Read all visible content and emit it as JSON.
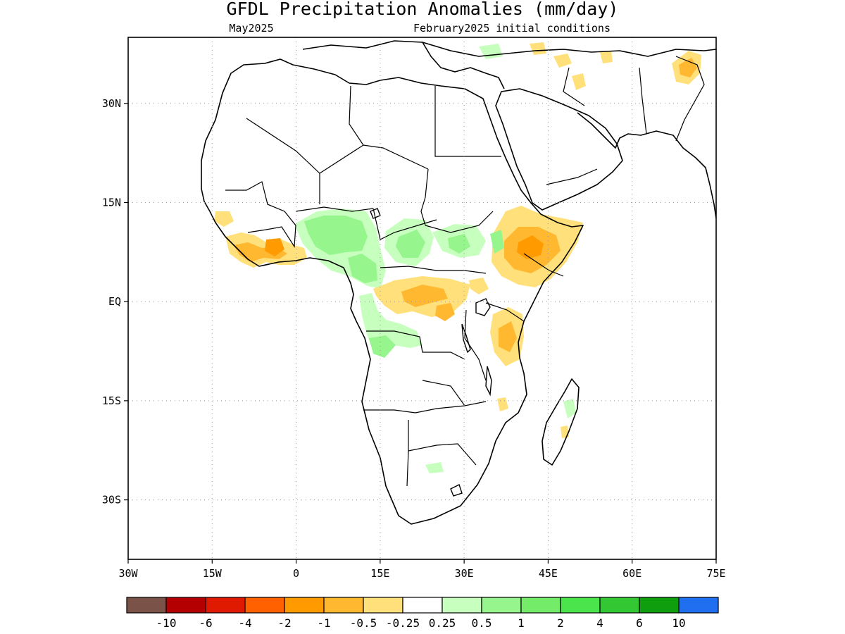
{
  "map": {
    "title": "GFDL Precipitation Anomalies (mm/day)",
    "valid_month": "May2025",
    "init_label": "February2025 initial conditions",
    "extent": {
      "lon": [
        -30,
        75
      ],
      "lat": [
        -39,
        40
      ]
    },
    "lon_ticks": [
      {
        "value": -30,
        "label": "30W"
      },
      {
        "value": -15,
        "label": "15W"
      },
      {
        "value": 0,
        "label": "0"
      },
      {
        "value": 15,
        "label": "15E"
      },
      {
        "value": 30,
        "label": "30E"
      },
      {
        "value": 45,
        "label": "45E"
      },
      {
        "value": 60,
        "label": "60E"
      },
      {
        "value": 75,
        "label": "75E"
      }
    ],
    "lat_ticks": [
      {
        "value": 30,
        "label": "30N"
      },
      {
        "value": 15,
        "label": "15N"
      },
      {
        "value": 0,
        "label": "EQ"
      },
      {
        "value": -15,
        "label": "15S"
      },
      {
        "value": -30,
        "label": "30S"
      }
    ],
    "grid": true
  },
  "colorbar": {
    "colors": [
      "#7a5248",
      "#b40000",
      "#e01a00",
      "#ff6000",
      "#ff9a00",
      "#ffb830",
      "#ffe07a",
      "#ffffff",
      "#c6ffbe",
      "#96f58c",
      "#74ec6a",
      "#4ce44c",
      "#33c833",
      "#0e9e0e",
      "#1f6ff0"
    ],
    "labels": [
      "-10",
      "-6",
      "-4",
      "-2",
      "-1",
      "-0.5",
      "-0.25",
      "0.25",
      "0.5",
      "1",
      "2",
      "4",
      "6",
      "10"
    ]
  },
  "chart_data": {
    "type": "heatmap",
    "title": "GFDL Precipitation Anomalies (mm/day)",
    "units": "mm/day",
    "color_levels": [
      -10,
      -6,
      -4,
      -2,
      -1,
      -0.5,
      -0.25,
      0.25,
      0.5,
      1,
      2,
      4,
      6,
      10
    ],
    "regions": [
      {
        "lon": [
          -13,
          -4
        ],
        "lat": [
          4,
          10
        ],
        "value": -0.6
      },
      {
        "lon": [
          -5,
          0
        ],
        "lat": [
          6,
          9
        ],
        "value": -1.2
      },
      {
        "lon": [
          1,
          15
        ],
        "lat": [
          6,
          14
        ],
        "value": 0.6
      },
      {
        "lon": [
          9,
          14
        ],
        "lat": [
          4,
          8
        ],
        "value": 1.0
      },
      {
        "lon": [
          19,
          27
        ],
        "lat": [
          7,
          12
        ],
        "value": 0.7
      },
      {
        "lon": [
          25,
          33
        ],
        "lat": [
          9,
          12
        ],
        "value": 0.5
      },
      {
        "lon": [
          14,
          29
        ],
        "lat": [
          -3,
          3
        ],
        "value": -0.6
      },
      {
        "lon": [
          16,
          23
        ],
        "lat": [
          -12,
          -3
        ],
        "value": 0.5
      },
      {
        "lon": [
          35,
          49
        ],
        "lat": [
          3,
          14
        ],
        "value": -0.8
      },
      {
        "lon": [
          40,
          43
        ],
        "lat": [
          7,
          10
        ],
        "value": -1.2
      },
      {
        "lon": [
          34,
          35
        ],
        "lat": [
          8,
          14
        ],
        "value": 0.5
      },
      {
        "lon": [
          36,
          41
        ],
        "lat": [
          -10,
          -1
        ],
        "value": -0.7
      },
      {
        "lon": [
          48,
          50
        ],
        "lat": [
          -20,
          -14
        ],
        "value": 0.4
      },
      {
        "lon": [
          65,
          71
        ],
        "lat": [
          33,
          38
        ],
        "value": -0.6
      },
      {
        "lon": [
          47,
          50
        ],
        "lat": [
          33,
          36
        ],
        "value": -0.4
      },
      {
        "lon": [
          33,
          38
        ],
        "lat": [
          36,
          39
        ],
        "value": 0.4
      },
      {
        "lon": [
          23,
          26
        ],
        "lat": [
          -27,
          -26
        ],
        "value": 0.4
      }
    ]
  }
}
